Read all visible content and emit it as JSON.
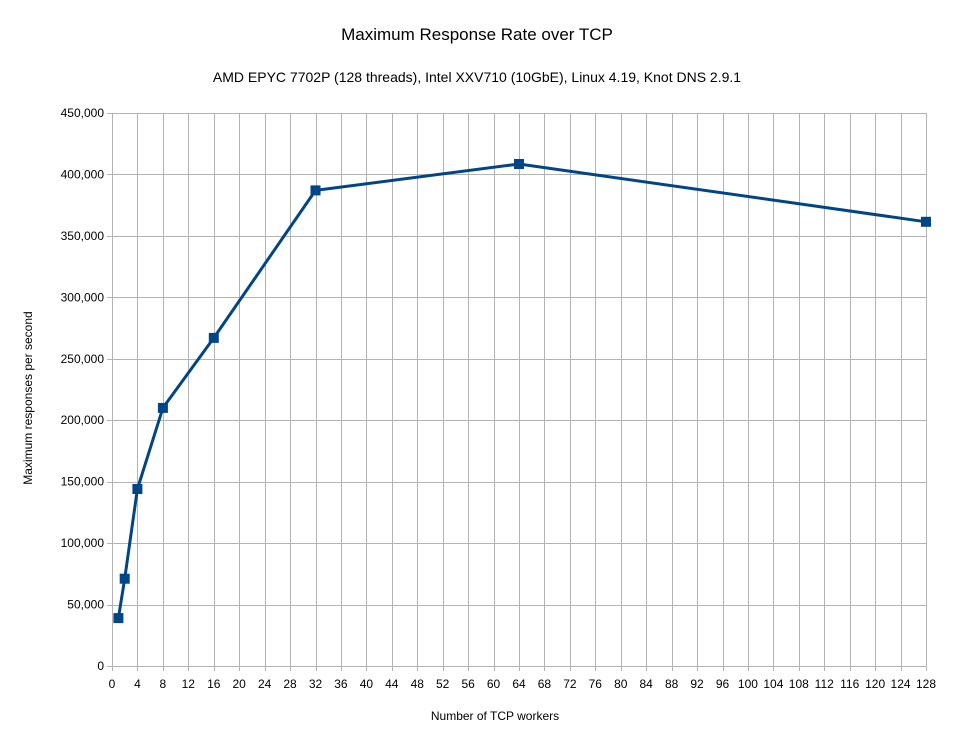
{
  "chart_data": {
    "type": "line",
    "title": "Maximum Response Rate over TCP",
    "subtitle": "AMD EPYC 7702P (128 threads), Intel XXV710 (10GbE), Linux 4.19, Knot DNS 2.9.1",
    "xlabel": "Number of TCP workers",
    "ylabel": "Maximum responses per second",
    "xlim": [
      0,
      128
    ],
    "ylim": [
      0,
      450000
    ],
    "x_ticks": [
      0,
      4,
      8,
      12,
      16,
      20,
      24,
      28,
      32,
      36,
      40,
      44,
      48,
      52,
      56,
      60,
      64,
      68,
      72,
      76,
      80,
      84,
      88,
      92,
      96,
      100,
      104,
      108,
      112,
      116,
      120,
      124,
      128
    ],
    "x_tick_labels": [
      "0",
      "4",
      "8",
      "12",
      "16",
      "20",
      "24",
      "28",
      "32",
      "36",
      "40",
      "44",
      "48",
      "52",
      "56",
      "60",
      "64",
      "68",
      "72",
      "76",
      "80",
      "84",
      "88",
      "92",
      "96",
      "100",
      "104",
      "108",
      "112",
      "116",
      "120",
      "124",
      "128"
    ],
    "y_ticks": [
      0,
      50000,
      100000,
      150000,
      200000,
      250000,
      300000,
      350000,
      400000,
      450000
    ],
    "y_tick_labels": [
      "0",
      "50,000",
      "100,000",
      "150,000",
      "200,000",
      "250,000",
      "300,000",
      "350,000",
      "400,000",
      "450,000"
    ],
    "grid": true,
    "legend": "none",
    "series": [
      {
        "color": "#004586",
        "marker": "square",
        "x": [
          1,
          2,
          4,
          8,
          16,
          32,
          64,
          128
        ],
        "y": [
          39000,
          71000,
          144000,
          210000,
          267000,
          387000,
          408500,
          361500
        ]
      }
    ]
  }
}
